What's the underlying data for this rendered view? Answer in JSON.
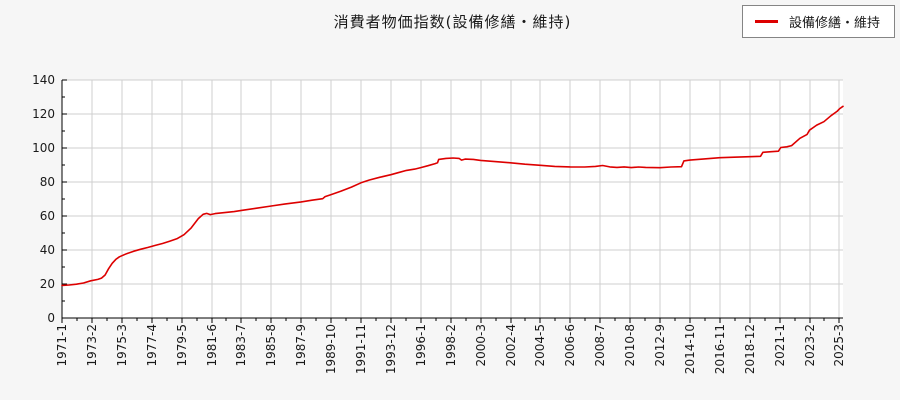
{
  "title": {
    "text": "消費者物価指数(設備修繕・維持)"
  },
  "legend": {
    "label": "設備修繕・維持",
    "line_color": "#dd0000",
    "position": "top-right"
  },
  "colors": {
    "page_bg": "#f6f6f6",
    "plot_bg": "#ffffff",
    "grid": "#cfcfcf",
    "axis": "#000000",
    "tick_text": "#1a1a1a",
    "line": "#dd0000"
  },
  "chart_data": {
    "type": "line",
    "title": "消費者物価指数(設備修繕・維持)",
    "xlabel": "",
    "ylabel": "",
    "grid": true,
    "legend_position": "top-right",
    "y_axis": {
      "min": 0,
      "max": 140,
      "tick_step": 20,
      "minor_tick_step": 10,
      "tick_labels": [
        "0",
        "20",
        "40",
        "60",
        "80",
        "100",
        "120",
        "140"
      ]
    },
    "x_axis": {
      "start": "1971-1",
      "end": "2025-6",
      "unit": "month",
      "tick_interval_months": 25,
      "tick_labels": [
        "1971-1",
        "1973-2",
        "1975-3",
        "1977-4",
        "1979-5",
        "1981-6",
        "1983-7",
        "1985-8",
        "1987-9",
        "1989-10",
        "1991-11",
        "1993-12",
        "1996-1",
        "1998-2",
        "2000-3",
        "2002-4",
        "2004-5",
        "2006-6",
        "2008-7",
        "2010-8",
        "2012-9",
        "2014-10",
        "2016-11",
        "2018-12",
        "2021-1",
        "2023-2",
        "2025-3"
      ]
    },
    "series": [
      {
        "name": "設備修繕・維持",
        "color": "#dd0000",
        "points": [
          [
            "1971-1",
            19.2
          ],
          [
            "1971-7",
            19.4
          ],
          [
            "1972-1",
            19.9
          ],
          [
            "1972-7",
            20.6
          ],
          [
            "1973-1",
            21.9
          ],
          [
            "1973-7",
            22.7
          ],
          [
            "1973-10",
            23.5
          ],
          [
            "1974-1",
            25.3
          ],
          [
            "1974-4",
            29.0
          ],
          [
            "1974-7",
            32.2
          ],
          [
            "1974-10",
            34.5
          ],
          [
            "1975-1",
            36.0
          ],
          [
            "1975-7",
            37.8
          ],
          [
            "1976-1",
            39.3
          ],
          [
            "1976-7",
            40.5
          ],
          [
            "1977-1",
            41.5
          ],
          [
            "1977-7",
            42.7
          ],
          [
            "1978-1",
            43.8
          ],
          [
            "1978-7",
            45.2
          ],
          [
            "1979-1",
            46.6
          ],
          [
            "1979-7",
            49.0
          ],
          [
            "1980-1",
            53.0
          ],
          [
            "1980-7",
            58.5
          ],
          [
            "1980-11",
            61.0
          ],
          [
            "1981-2",
            61.5
          ],
          [
            "1981-5",
            60.8
          ],
          [
            "1981-9",
            61.4
          ],
          [
            "1982-3",
            61.9
          ],
          [
            "1983-1",
            62.6
          ],
          [
            "1983-7",
            63.3
          ],
          [
            "1984-7",
            64.5
          ],
          [
            "1985-8",
            65.9
          ],
          [
            "1986-7",
            67.0
          ],
          [
            "1987-9",
            68.3
          ],
          [
            "1988-6",
            69.3
          ],
          [
            "1989-3",
            70.2
          ],
          [
            "1989-5",
            71.4
          ],
          [
            "1989-10",
            72.6
          ],
          [
            "1990-6",
            74.5
          ],
          [
            "1991-3",
            77.0
          ],
          [
            "1991-11",
            79.5
          ],
          [
            "1992-6",
            81.2
          ],
          [
            "1993-3",
            82.8
          ],
          [
            "1993-12",
            84.3
          ],
          [
            "1994-6",
            85.5
          ],
          [
            "1995-1",
            86.8
          ],
          [
            "1995-8",
            87.6
          ],
          [
            "1996-1",
            88.5
          ],
          [
            "1996-7",
            89.6
          ],
          [
            "1997-1",
            90.8
          ],
          [
            "1997-3",
            91.3
          ],
          [
            "1997-4",
            93.3
          ],
          [
            "1997-10",
            93.9
          ],
          [
            "1998-4",
            94.1
          ],
          [
            "1998-9",
            93.9
          ],
          [
            "1998-11",
            92.9
          ],
          [
            "1999-2",
            93.5
          ],
          [
            "1999-9",
            93.3
          ],
          [
            "2000-3",
            92.7
          ],
          [
            "2001-3",
            92.0
          ],
          [
            "2002-4",
            91.3
          ],
          [
            "2003-4",
            90.5
          ],
          [
            "2004-5",
            89.8
          ],
          [
            "2005-5",
            89.2
          ],
          [
            "2006-6",
            88.9
          ],
          [
            "2007-6",
            88.8
          ],
          [
            "2008-3",
            89.2
          ],
          [
            "2008-9",
            89.7
          ],
          [
            "2009-3",
            88.9
          ],
          [
            "2009-9",
            88.6
          ],
          [
            "2010-3",
            88.9
          ],
          [
            "2010-9",
            88.5
          ],
          [
            "2011-3",
            88.8
          ],
          [
            "2011-9",
            88.6
          ],
          [
            "2012-9",
            88.4
          ],
          [
            "2013-6",
            88.8
          ],
          [
            "2014-3",
            89.0
          ],
          [
            "2014-5",
            92.4
          ],
          [
            "2014-10",
            92.9
          ],
          [
            "2015-10",
            93.6
          ],
          [
            "2016-11",
            94.3
          ],
          [
            "2017-11",
            94.6
          ],
          [
            "2018-12",
            94.9
          ],
          [
            "2019-9",
            95.1
          ],
          [
            "2019-11",
            97.5
          ],
          [
            "2020-6",
            97.8
          ],
          [
            "2020-12",
            98.1
          ],
          [
            "2021-2",
            100.3
          ],
          [
            "2021-7",
            100.7
          ],
          [
            "2021-11",
            101.4
          ],
          [
            "2022-6",
            105.7
          ],
          [
            "2022-12",
            108.0
          ],
          [
            "2023-2",
            110.5
          ],
          [
            "2023-8",
            113.5
          ],
          [
            "2024-2",
            115.5
          ],
          [
            "2024-8",
            119.0
          ],
          [
            "2025-1",
            121.5
          ],
          [
            "2025-3",
            123.0
          ],
          [
            "2025-6",
            124.5
          ]
        ]
      }
    ]
  }
}
